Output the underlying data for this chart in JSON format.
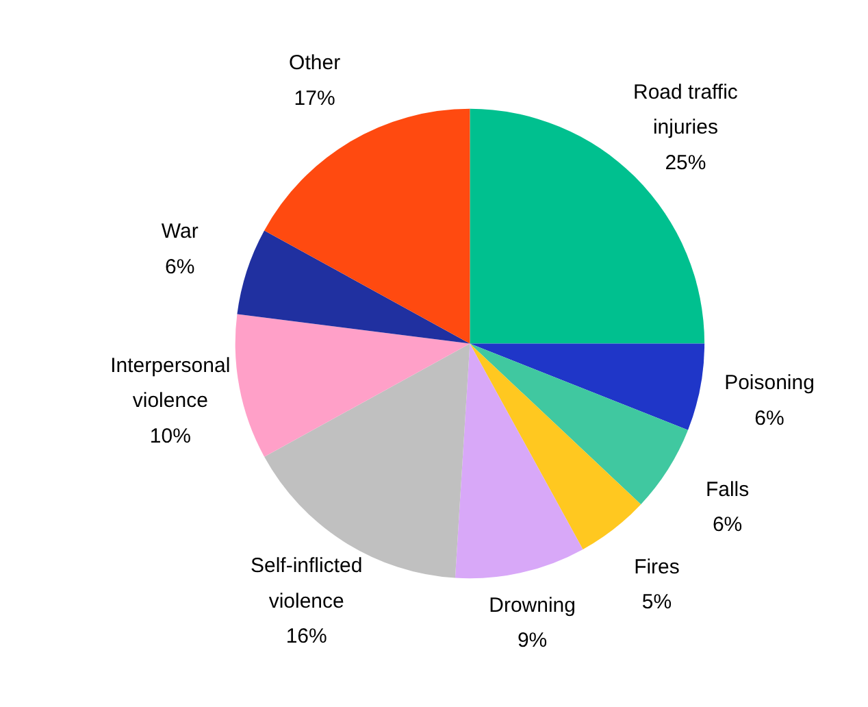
{
  "chart_data": {
    "type": "pie",
    "categories": [
      "Road traffic injuries",
      "Poisoning",
      "Falls",
      "Fires",
      "Drowning",
      "Self-inflicted violence",
      "Interpersonal violence",
      "War",
      "Other"
    ],
    "values": [
      25,
      6,
      6,
      5,
      9,
      16,
      10,
      6,
      17
    ],
    "value_labels": [
      "25%",
      "6%",
      "6%",
      "5%",
      "9%",
      "16%",
      "10%",
      "6%",
      "17%"
    ],
    "colors": [
      "#00c08f",
      "#1f36c8",
      "#40c8a0",
      "#ffc820",
      "#d8a8f8",
      "#c0c0c0",
      "#ffa0c8",
      "#2030a0",
      "#ff4a10"
    ],
    "legend": false
  }
}
